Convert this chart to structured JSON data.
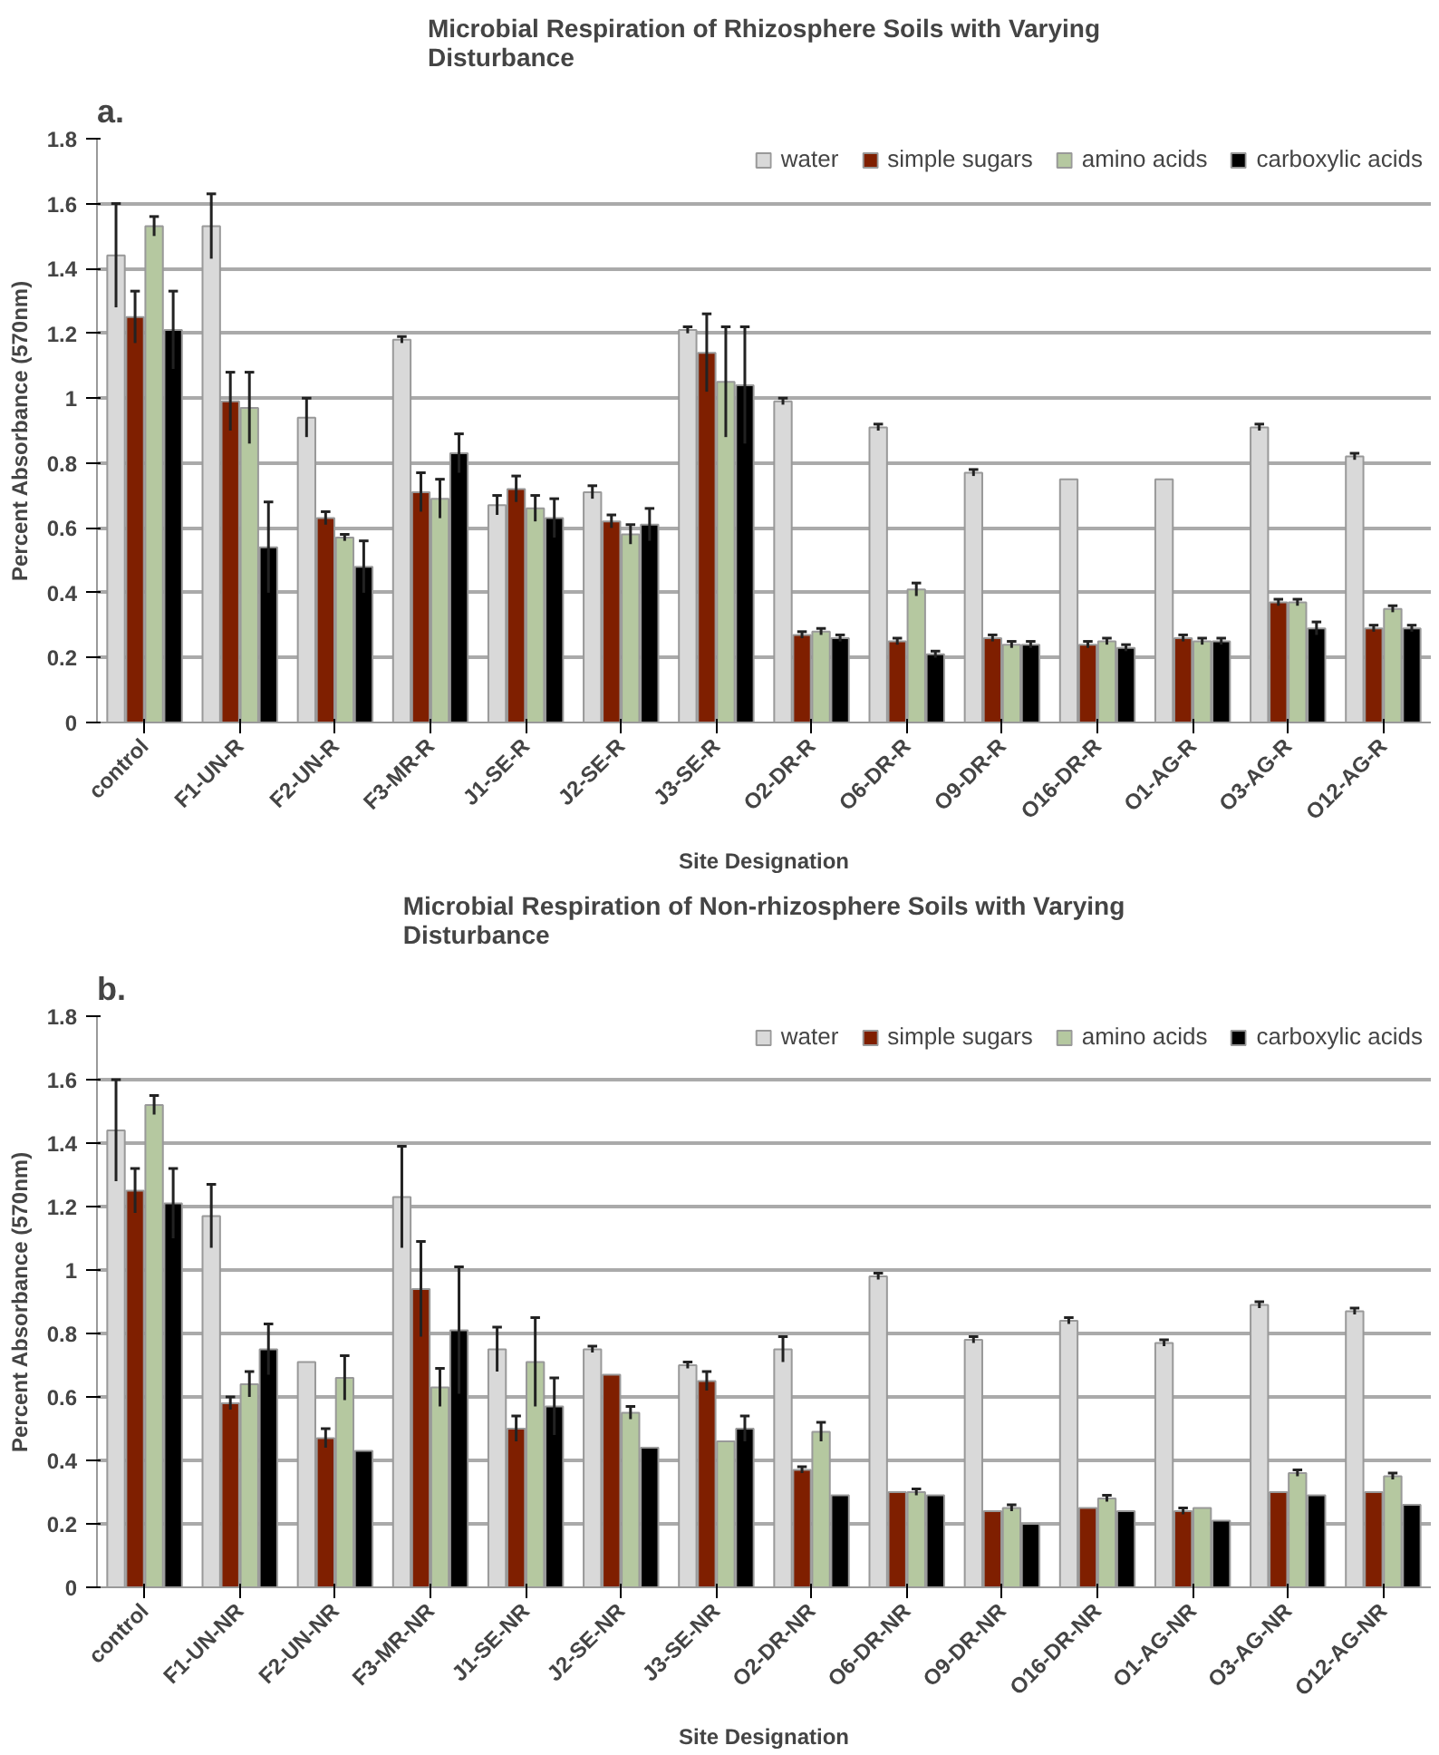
{
  "chart_data": [
    {
      "type": "bar",
      "title": "Microbial Respiration of Rhizosphere Soils with Varying Disturbance",
      "xlabel": "Site Designation",
      "ylabel": "Percent Absorbance (570nm)",
      "annotations": [
        "a."
      ],
      "categories": [
        "control",
        "F1-UN-R",
        "F2-UN-R",
        "F3-MR-R",
        "J1-SE-R",
        "J2-SE-R",
        "J3-SE-R",
        "O2-DR-R",
        "O6-DR-R",
        "O9-DR-R",
        "O16-DR-R",
        "O1-AG-R",
        "O3-AG-R",
        "O12-AG-R"
      ],
      "series": [
        {
          "name": "water",
          "color": "#d9d9d9",
          "values": [
            1.44,
            1.53,
            0.94,
            1.18,
            0.67,
            0.71,
            1.21,
            0.99,
            0.91,
            0.77,
            0.75,
            0.75,
            0.91,
            0.82
          ],
          "errors": [
            0.16,
            0.1,
            0.06,
            0.01,
            0.03,
            0.02,
            0.01,
            0.01,
            0.01,
            0.01,
            null,
            null,
            0.01,
            0.01
          ]
        },
        {
          "name": "simple sugars",
          "color": "#7f1f00",
          "values": [
            1.25,
            0.99,
            0.63,
            0.71,
            0.72,
            0.62,
            1.14,
            0.27,
            0.25,
            0.26,
            0.24,
            0.26,
            0.37,
            0.29
          ],
          "errors": [
            0.08,
            0.09,
            0.02,
            0.06,
            0.04,
            0.02,
            0.12,
            0.01,
            0.01,
            0.01,
            0.01,
            0.01,
            0.01,
            0.01
          ]
        },
        {
          "name": "amino acids",
          "color": "#b5c8a0",
          "values": [
            1.53,
            0.97,
            0.57,
            0.69,
            0.66,
            0.58,
            1.05,
            0.28,
            0.41,
            0.24,
            0.25,
            0.25,
            0.37,
            0.35
          ],
          "errors": [
            0.03,
            0.11,
            0.01,
            0.06,
            0.04,
            0.03,
            0.17,
            0.01,
            0.02,
            0.01,
            0.01,
            0.01,
            0.01,
            0.01
          ]
        },
        {
          "name": "carboxylic acids",
          "color": "#000000",
          "values": [
            1.21,
            0.54,
            0.48,
            0.83,
            0.63,
            0.61,
            1.04,
            0.26,
            0.21,
            0.24,
            0.23,
            0.25,
            0.29,
            0.29
          ],
          "errors": [
            0.12,
            0.14,
            0.08,
            0.06,
            0.06,
            0.05,
            0.18,
            0.01,
            0.01,
            0.01,
            0.01,
            0.01,
            0.02,
            0.01
          ]
        }
      ],
      "ylim": [
        0,
        1.8
      ],
      "yticks": [
        0,
        0.2,
        0.4,
        0.6,
        0.8,
        1,
        1.2,
        1.4,
        1.6,
        1.8
      ],
      "grid": "y",
      "legend": "top right"
    },
    {
      "type": "bar",
      "title": "Microbial Respiration of Non-rhizosphere Soils with Varying Disturbance",
      "xlabel": "Site Designation",
      "ylabel": "Percent Absorbance (570nm)",
      "annotations": [
        "b."
      ],
      "categories": [
        "control",
        "F1-UN-NR",
        "F2-UN-NR",
        "F3-MR-NR",
        "J1-SE-NR",
        "J2-SE-NR",
        "J3-SE-NR",
        "O2-DR-NR",
        "O6-DR-NR",
        "O9-DR-NR",
        "O16-DR-NR",
        "O1-AG-NR",
        "O3-AG-NR",
        "O12-AG-NR"
      ],
      "series": [
        {
          "name": "water",
          "color": "#d9d9d9",
          "values": [
            1.44,
            1.17,
            0.71,
            1.23,
            0.75,
            0.75,
            0.7,
            0.75,
            0.98,
            0.78,
            0.84,
            0.77,
            0.89,
            0.87
          ],
          "errors": [
            0.16,
            0.1,
            null,
            0.16,
            0.07,
            0.01,
            0.01,
            0.04,
            0.01,
            0.01,
            0.01,
            0.01,
            0.01,
            0.01
          ]
        },
        {
          "name": "simple sugars",
          "color": "#7f1f00",
          "values": [
            1.25,
            0.58,
            0.47,
            0.94,
            0.5,
            0.67,
            0.65,
            0.37,
            0.3,
            0.24,
            0.25,
            0.24,
            0.3,
            0.3
          ],
          "errors": [
            0.07,
            0.02,
            0.03,
            0.15,
            0.04,
            null,
            0.03,
            0.01,
            null,
            null,
            null,
            0.01,
            null,
            null
          ]
        },
        {
          "name": "amino acids",
          "color": "#b5c8a0",
          "values": [
            1.52,
            0.64,
            0.66,
            0.63,
            0.71,
            0.55,
            0.46,
            0.49,
            0.3,
            0.25,
            0.28,
            0.25,
            0.36,
            0.35
          ],
          "errors": [
            0.03,
            0.04,
            0.07,
            0.06,
            0.14,
            0.02,
            null,
            0.03,
            0.01,
            0.01,
            0.01,
            null,
            0.01,
            0.01
          ]
        },
        {
          "name": "carboxylic acids",
          "color": "#000000",
          "values": [
            1.21,
            0.75,
            0.43,
            0.81,
            0.57,
            0.44,
            0.5,
            0.29,
            0.29,
            0.2,
            0.24,
            0.21,
            0.29,
            0.26
          ],
          "errors": [
            0.11,
            0.08,
            null,
            0.2,
            0.09,
            null,
            0.04,
            null,
            null,
            null,
            null,
            null,
            null,
            null
          ]
        }
      ],
      "ylim": [
        0,
        1.8
      ],
      "yticks": [
        0,
        0.2,
        0.4,
        0.6,
        0.8,
        1,
        1.2,
        1.4,
        1.6,
        1.8
      ],
      "grid": "y",
      "legend": "top right"
    }
  ]
}
